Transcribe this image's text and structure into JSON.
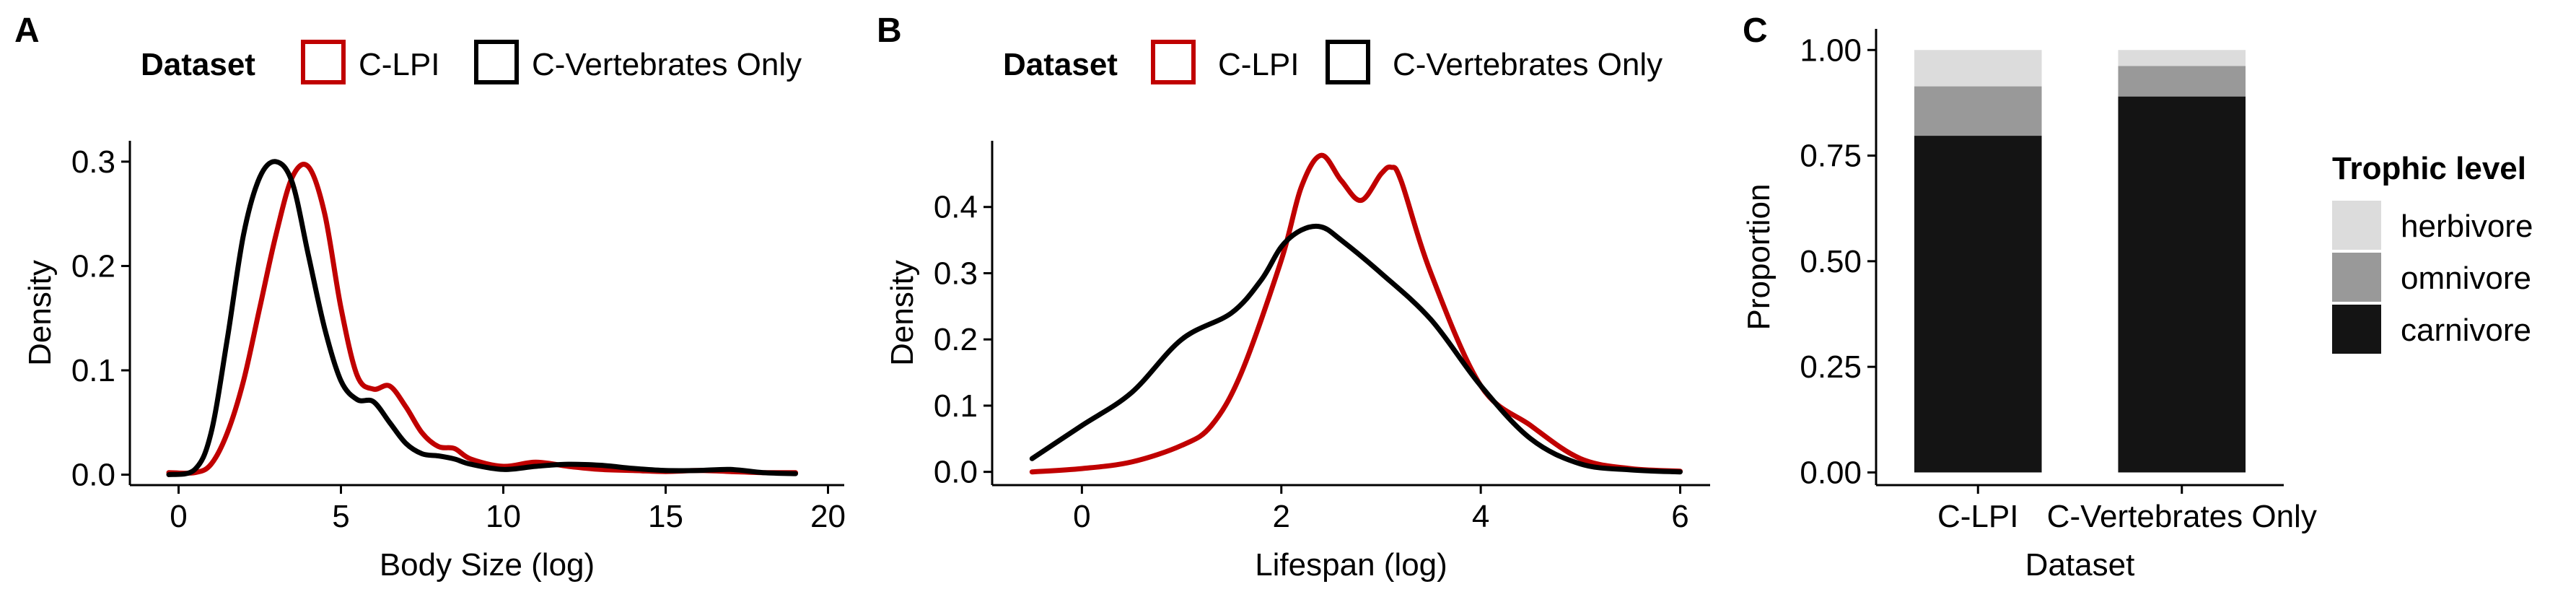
{
  "colors": {
    "lpi": "#c00000",
    "vert": "#000000",
    "herbivore": "#dcdcdc",
    "omnivore": "#999999",
    "carnivore": "#141414"
  },
  "chart_data": [
    {
      "type": "line",
      "panel_label": "A",
      "legend": {
        "title": "Dataset",
        "position": "top"
      },
      "xlabel": "Body Size (log)",
      "ylabel": "Density",
      "xlim": [
        -1.5,
        20.5
      ],
      "ylim": [
        -0.01,
        0.32
      ],
      "x_ticks": [
        0,
        5,
        10,
        15,
        20
      ],
      "y_ticks": [
        0.0,
        0.1,
        0.2,
        0.3
      ],
      "x_tick_labels": [
        "0",
        "5",
        "10",
        "15",
        "20"
      ],
      "y_tick_labels": [
        "0.0",
        "0.1",
        "0.2",
        "0.3"
      ],
      "series": [
        {
          "name": "C-LPI",
          "color": "#c00000",
          "x": [
            -0.3,
            0.5,
            1.0,
            1.5,
            2.0,
            2.5,
            3.0,
            3.5,
            4.0,
            4.5,
            5.0,
            5.5,
            6.0,
            6.5,
            7.0,
            7.5,
            8.0,
            8.5,
            9.0,
            10.0,
            11.0,
            12.0,
            13.0,
            14.0,
            15.0,
            16.0,
            17.0,
            18.0,
            19.0
          ],
          "y": [
            0.002,
            0.002,
            0.01,
            0.04,
            0.09,
            0.16,
            0.23,
            0.285,
            0.295,
            0.25,
            0.16,
            0.095,
            0.082,
            0.085,
            0.065,
            0.04,
            0.027,
            0.025,
            0.015,
            0.008,
            0.012,
            0.008,
            0.005,
            0.004,
            0.003,
            0.004,
            0.003,
            0.002,
            0.002
          ]
        },
        {
          "name": "C-Vertebrates Only",
          "color": "#000000",
          "x": [
            -0.3,
            0.5,
            1.0,
            1.5,
            2.0,
            2.5,
            3.0,
            3.5,
            4.0,
            4.5,
            5.0,
            5.5,
            6.0,
            6.5,
            7.0,
            7.5,
            8.0,
            8.5,
            9.0,
            10.0,
            11.0,
            12.0,
            13.0,
            14.0,
            15.0,
            16.0,
            17.0,
            18.0,
            19.0
          ],
          "y": [
            0.0,
            0.005,
            0.04,
            0.13,
            0.23,
            0.285,
            0.3,
            0.28,
            0.21,
            0.14,
            0.09,
            0.072,
            0.07,
            0.05,
            0.03,
            0.02,
            0.018,
            0.015,
            0.01,
            0.005,
            0.008,
            0.01,
            0.009,
            0.006,
            0.004,
            0.004,
            0.005,
            0.002,
            0.001
          ]
        }
      ]
    },
    {
      "type": "line",
      "panel_label": "B",
      "legend": {
        "title": "Dataset",
        "position": "top"
      },
      "xlabel": "Lifespan (log)",
      "ylabel": "Density",
      "xlim": [
        -0.9,
        6.3
      ],
      "ylim": [
        -0.02,
        0.5
      ],
      "x_ticks": [
        0,
        2,
        4,
        6
      ],
      "y_ticks": [
        0.0,
        0.1,
        0.2,
        0.3,
        0.4
      ],
      "x_tick_labels": [
        "0",
        "2",
        "4",
        "6"
      ],
      "y_tick_labels": [
        "0.0",
        "0.1",
        "0.2",
        "0.3",
        "0.4"
      ],
      "series": [
        {
          "name": "C-LPI",
          "color": "#c00000",
          "x": [
            -0.5,
            0.0,
            0.5,
            1.0,
            1.3,
            1.6,
            2.0,
            2.2,
            2.4,
            2.6,
            2.8,
            3.0,
            3.1,
            3.2,
            3.5,
            4.0,
            4.5,
            5.0,
            5.5,
            6.0
          ],
          "y": [
            0.0,
            0.005,
            0.015,
            0.04,
            0.07,
            0.15,
            0.32,
            0.43,
            0.478,
            0.44,
            0.41,
            0.45,
            0.46,
            0.44,
            0.3,
            0.13,
            0.07,
            0.02,
            0.005,
            0.001
          ]
        },
        {
          "name": "C-Vertebrates Only",
          "color": "#000000",
          "x": [
            -0.5,
            0.0,
            0.5,
            1.0,
            1.5,
            1.8,
            2.0,
            2.2,
            2.4,
            2.6,
            3.0,
            3.5,
            4.0,
            4.5,
            5.0,
            5.5,
            6.0
          ],
          "y": [
            0.02,
            0.07,
            0.12,
            0.2,
            0.24,
            0.29,
            0.34,
            0.365,
            0.37,
            0.35,
            0.3,
            0.23,
            0.13,
            0.05,
            0.012,
            0.003,
            0.0
          ]
        }
      ]
    },
    {
      "type": "bar",
      "stacked": true,
      "panel_label": "C",
      "legend": {
        "title": "Trophic level",
        "position": "right"
      },
      "xlabel": "Dataset",
      "ylabel": "Proportion",
      "ylim": [
        -0.03,
        1.05
      ],
      "y_ticks": [
        0.0,
        0.25,
        0.5,
        0.75,
        1.0
      ],
      "y_tick_labels": [
        "0.00",
        "0.25",
        "0.50",
        "0.75",
        "1.00"
      ],
      "categories": [
        "C-LPI",
        "C-Vertebrates Only"
      ],
      "series": [
        {
          "name": "carnivore",
          "color": "#141414",
          "values": [
            0.797,
            0.89
          ]
        },
        {
          "name": "omnivore",
          "color": "#999999",
          "values": [
            0.117,
            0.072
          ]
        },
        {
          "name": "herbivore",
          "color": "#dcdcdc",
          "values": [
            0.086,
            0.038
          ]
        }
      ]
    }
  ]
}
